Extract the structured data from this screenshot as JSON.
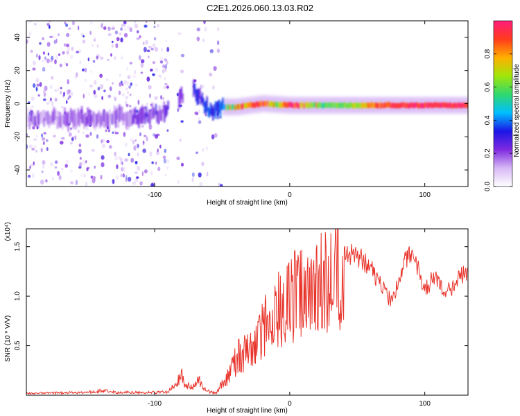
{
  "figure": {
    "title": "C2E1.2026.060.13.03.R02"
  },
  "colors": {
    "snr_line": "#e8332a",
    "axis": "#000000",
    "background": "#ffffff",
    "colormap": [
      "#ffffff",
      "#d7b8f5",
      "#7f2be0",
      "#1c16e6",
      "#00bfff",
      "#2fd86f",
      "#a0e60a",
      "#ffb000",
      "#ff3b1c",
      "#ff1c7c"
    ]
  },
  "chart_data": [
    {
      "type": "heatmap",
      "name": "spectrogram",
      "title": "C2E1.2026.060.13.03.R02",
      "xlabel": "Height of straight line (km)",
      "ylabel": "Frequency (Hz)",
      "xlim": [
        -195,
        132
      ],
      "ylim": [
        -50,
        50
      ],
      "x_ticks": [
        -100,
        0,
        100
      ],
      "y_ticks": [
        -40,
        -20,
        0,
        20,
        40
      ],
      "x_tick_labels": [
        "-100",
        "0",
        "100"
      ],
      "y_tick_labels": [
        "-40",
        "-20",
        "0",
        "20",
        "40"
      ],
      "colorbar": {
        "label": "Normalized spectral amplitude",
        "range": [
          0,
          1
        ],
        "ticks": [
          0.0,
          0.2,
          0.4,
          0.6,
          0.8
        ],
        "tick_labels": [
          "0.0",
          "0.2",
          "0.4",
          "0.6",
          "0.8"
        ]
      },
      "blank_gaps_km": [
        [
          -90,
          -83
        ],
        [
          -79,
          -72
        ]
      ],
      "signal_track": [
        {
          "x": -195,
          "y": -9
        },
        {
          "x": -150,
          "y": -9
        },
        {
          "x": -120,
          "y": -8
        },
        {
          "x": -100,
          "y": -6
        },
        {
          "x": -93,
          "y": -5
        },
        {
          "x": -80,
          "y": 5
        },
        {
          "x": -74,
          "y": 12
        },
        {
          "x": -60,
          "y": -5
        },
        {
          "x": -50,
          "y": -2
        },
        {
          "x": -40,
          "y": -2
        },
        {
          "x": -20,
          "y": 0
        },
        {
          "x": 0,
          "y": -1
        },
        {
          "x": 40,
          "y": -1
        },
        {
          "x": 80,
          "y": -1
        },
        {
          "x": 132,
          "y": -1
        }
      ],
      "amplitude_profile": [
        {
          "x": -195,
          "a": 0.15
        },
        {
          "x": -120,
          "a": 0.18
        },
        {
          "x": -90,
          "a": 0.25
        },
        {
          "x": -72,
          "a": 0.28
        },
        {
          "x": -55,
          "a": 0.35
        },
        {
          "x": -40,
          "a": 0.6
        },
        {
          "x": -25,
          "a": 0.95
        },
        {
          "x": -10,
          "a": 0.6
        },
        {
          "x": 0,
          "a": 0.95
        },
        {
          "x": 20,
          "a": 0.55
        },
        {
          "x": 45,
          "a": 0.62
        },
        {
          "x": 65,
          "a": 0.88
        },
        {
          "x": 90,
          "a": 0.95
        },
        {
          "x": 100,
          "a": 0.93
        },
        {
          "x": 132,
          "a": 0.95
        }
      ]
    },
    {
      "type": "line",
      "name": "snr",
      "xlabel": "Height of straight line (km)",
      "ylabel": "SNR (10 * V/V)",
      "y_multiplier_label": "(x10⁴)",
      "xlim": [
        -195,
        132
      ],
      "ylim": [
        0,
        1.68
      ],
      "y_unit": "x10^4",
      "x_ticks": [
        -100,
        0,
        100
      ],
      "y_ticks": [
        0.5,
        1.0,
        1.5
      ],
      "x_tick_labels": [
        "-100",
        "0",
        "100"
      ],
      "y_tick_labels": [
        "0.5",
        "1.0",
        "1.5"
      ],
      "series": [
        {
          "name": "SNR",
          "x": [
            -195,
            -150,
            -140,
            -130,
            -100,
            -90,
            -84,
            -80,
            -76,
            -72,
            -68,
            -62,
            -55,
            -48,
            -42,
            -38,
            -34,
            -30,
            -26,
            -22,
            -18,
            -14,
            -10,
            -5,
            0,
            5,
            10,
            15,
            20,
            25,
            30,
            35,
            40,
            45,
            50,
            55,
            60,
            65,
            70,
            75,
            80,
            85,
            90,
            95,
            100,
            105,
            110,
            115,
            120,
            125,
            132
          ],
          "y": [
            0.02,
            0.03,
            0.05,
            0.03,
            0.03,
            0.04,
            0.12,
            0.2,
            0.1,
            0.08,
            0.18,
            0.05,
            0.02,
            0.15,
            0.35,
            0.45,
            0.5,
            0.55,
            0.6,
            0.72,
            0.82,
            0.9,
            1.0,
            1.05,
            1.12,
            1.2,
            1.25,
            1.28,
            1.32,
            1.36,
            1.4,
            1.44,
            1.47,
            1.45,
            1.42,
            1.38,
            1.3,
            1.2,
            1.1,
            0.96,
            1.15,
            1.4,
            1.48,
            1.3,
            1.08,
            1.18,
            1.22,
            1.05,
            1.1,
            1.2,
            1.3
          ]
        }
      ]
    }
  ]
}
